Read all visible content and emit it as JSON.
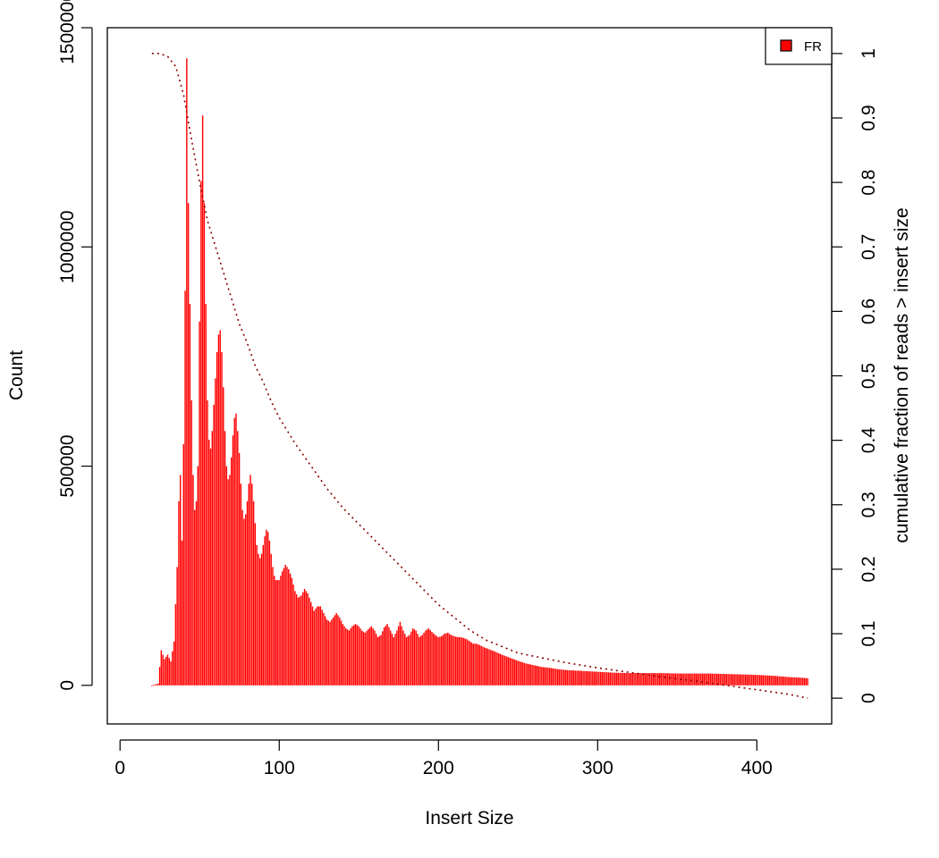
{
  "chart_data": {
    "type": "bar",
    "title": "",
    "xlabel": "Insert Size",
    "ylabel": "Count",
    "y2label": "cumulative fraction of reads > insert size",
    "xlim": [
      -8,
      447
    ],
    "ylim": [
      -88000,
      1500000
    ],
    "y2lim": [
      -0.04,
      1.04
    ],
    "xticks": [
      "0",
      "100",
      "200",
      "300",
      "400"
    ],
    "xtick_values": [
      0,
      100,
      200,
      300,
      400
    ],
    "yticks": [
      "0",
      "500000",
      "1000000",
      "1500000"
    ],
    "ytick_values": [
      0,
      500000,
      1000000,
      1500000
    ],
    "y2ticks": [
      "0",
      "0.1",
      "0.2",
      "0.3",
      "0.4",
      "0.5",
      "0.6",
      "0.7",
      "0.8",
      "0.9",
      "1"
    ],
    "y2tick_values": [
      0,
      0.1,
      0.2,
      0.3,
      0.4,
      0.5,
      0.6,
      0.7,
      0.8,
      0.9,
      1
    ],
    "grid": false,
    "legend": {
      "position": "top-right",
      "entries": [
        {
          "label": "FR",
          "color": "#ff0000"
        }
      ]
    },
    "series": [
      {
        "name": "FR",
        "kind": "histogram",
        "color": "#ff0000",
        "points": [
          [
            20,
            0
          ],
          [
            24,
            4000
          ],
          [
            26,
            80000
          ],
          [
            28,
            60000
          ],
          [
            30,
            70000
          ],
          [
            32,
            55000
          ],
          [
            34,
            100000
          ],
          [
            36,
            270000
          ],
          [
            37,
            420000
          ],
          [
            38,
            480000
          ],
          [
            39,
            330000
          ],
          [
            40,
            550000
          ],
          [
            41,
            900000
          ],
          [
            42,
            1430000
          ],
          [
            43,
            1100000
          ],
          [
            44,
            870000
          ],
          [
            45,
            650000
          ],
          [
            46,
            480000
          ],
          [
            47,
            400000
          ],
          [
            48,
            420000
          ],
          [
            49,
            500000
          ],
          [
            50,
            830000
          ],
          [
            51,
            1150000
          ],
          [
            52,
            1300000
          ],
          [
            53,
            1100000
          ],
          [
            54,
            870000
          ],
          [
            55,
            650000
          ],
          [
            56,
            560000
          ],
          [
            57,
            540000
          ],
          [
            58,
            580000
          ],
          [
            59,
            640000
          ],
          [
            60,
            700000
          ],
          [
            61,
            760000
          ],
          [
            62,
            800000
          ],
          [
            63,
            810000
          ],
          [
            64,
            760000
          ],
          [
            65,
            680000
          ],
          [
            66,
            580000
          ],
          [
            67,
            500000
          ],
          [
            68,
            470000
          ],
          [
            69,
            480000
          ],
          [
            70,
            520000
          ],
          [
            71,
            570000
          ],
          [
            72,
            610000
          ],
          [
            73,
            620000
          ],
          [
            74,
            580000
          ],
          [
            75,
            530000
          ],
          [
            76,
            460000
          ],
          [
            77,
            400000
          ],
          [
            78,
            380000
          ],
          [
            79,
            390000
          ],
          [
            80,
            420000
          ],
          [
            81,
            460000
          ],
          [
            82,
            480000
          ],
          [
            83,
            460000
          ],
          [
            84,
            420000
          ],
          [
            85,
            370000
          ],
          [
            86,
            320000
          ],
          [
            87,
            300000
          ],
          [
            88,
            290000
          ],
          [
            89,
            300000
          ],
          [
            90,
            320000
          ],
          [
            91,
            340000
          ],
          [
            92,
            355000
          ],
          [
            93,
            350000
          ],
          [
            94,
            330000
          ],
          [
            95,
            300000
          ],
          [
            96,
            270000
          ],
          [
            97,
            250000
          ],
          [
            98,
            240000
          ],
          [
            100,
            240000
          ],
          [
            102,
            260000
          ],
          [
            104,
            275000
          ],
          [
            106,
            265000
          ],
          [
            108,
            245000
          ],
          [
            110,
            215000
          ],
          [
            112,
            200000
          ],
          [
            114,
            205000
          ],
          [
            116,
            220000
          ],
          [
            118,
            210000
          ],
          [
            120,
            190000
          ],
          [
            122,
            170000
          ],
          [
            124,
            180000
          ],
          [
            126,
            180000
          ],
          [
            128,
            165000
          ],
          [
            130,
            150000
          ],
          [
            132,
            145000
          ],
          [
            134,
            155000
          ],
          [
            136,
            165000
          ],
          [
            138,
            155000
          ],
          [
            140,
            140000
          ],
          [
            142,
            130000
          ],
          [
            144,
            125000
          ],
          [
            146,
            135000
          ],
          [
            148,
            140000
          ],
          [
            150,
            135000
          ],
          [
            152,
            125000
          ],
          [
            154,
            120000
          ],
          [
            156,
            128000
          ],
          [
            158,
            135000
          ],
          [
            160,
            125000
          ],
          [
            162,
            110000
          ],
          [
            164,
            115000
          ],
          [
            166,
            132000
          ],
          [
            168,
            140000
          ],
          [
            170,
            125000
          ],
          [
            172,
            110000
          ],
          [
            174,
            125000
          ],
          [
            176,
            145000
          ],
          [
            178,
            125000
          ],
          [
            180,
            110000
          ],
          [
            182,
            115000
          ],
          [
            184,
            130000
          ],
          [
            186,
            125000
          ],
          [
            188,
            110000
          ],
          [
            190,
            115000
          ],
          [
            192,
            125000
          ],
          [
            194,
            130000
          ],
          [
            196,
            122000
          ],
          [
            198,
            115000
          ],
          [
            200,
            110000
          ],
          [
            202,
            112000
          ],
          [
            204,
            118000
          ],
          [
            206,
            120000
          ],
          [
            208,
            115000
          ],
          [
            210,
            112000
          ],
          [
            212,
            110000
          ],
          [
            214,
            110000
          ],
          [
            216,
            108000
          ],
          [
            218,
            105000
          ],
          [
            220,
            100000
          ],
          [
            222,
            95000
          ],
          [
            224,
            95000
          ],
          [
            226,
            92000
          ],
          [
            228,
            88000
          ],
          [
            230,
            85000
          ],
          [
            235,
            78000
          ],
          [
            240,
            70000
          ],
          [
            245,
            63000
          ],
          [
            250,
            56000
          ],
          [
            255,
            50000
          ],
          [
            260,
            46000
          ],
          [
            265,
            42000
          ],
          [
            270,
            40000
          ],
          [
            275,
            37000
          ],
          [
            280,
            35000
          ],
          [
            290,
            33000
          ],
          [
            300,
            31000
          ],
          [
            310,
            29000
          ],
          [
            320,
            28000
          ],
          [
            330,
            28000
          ],
          [
            340,
            28000
          ],
          [
            350,
            27000
          ],
          [
            360,
            27000
          ],
          [
            370,
            27000
          ],
          [
            380,
            26000
          ],
          [
            390,
            25000
          ],
          [
            400,
            24000
          ],
          [
            410,
            22000
          ],
          [
            420,
            19000
          ],
          [
            430,
            17000
          ],
          [
            432,
            16000
          ]
        ]
      },
      {
        "name": "",
        "kind": "cumulative-line",
        "axis": "right",
        "color": "#8b0000",
        "line_style": "dotted",
        "points": [
          [
            20,
            1.0
          ],
          [
            25,
            1.0
          ],
          [
            30,
            0.995
          ],
          [
            35,
            0.98
          ],
          [
            40,
            0.935
          ],
          [
            45,
            0.865
          ],
          [
            50,
            0.8
          ],
          [
            55,
            0.74
          ],
          [
            60,
            0.7
          ],
          [
            65,
            0.66
          ],
          [
            70,
            0.62
          ],
          [
            75,
            0.58
          ],
          [
            80,
            0.55
          ],
          [
            85,
            0.515
          ],
          [
            90,
            0.49
          ],
          [
            95,
            0.46
          ],
          [
            100,
            0.435
          ],
          [
            110,
            0.395
          ],
          [
            120,
            0.36
          ],
          [
            130,
            0.325
          ],
          [
            140,
            0.295
          ],
          [
            150,
            0.27
          ],
          [
            160,
            0.245
          ],
          [
            170,
            0.22
          ],
          [
            180,
            0.195
          ],
          [
            190,
            0.17
          ],
          [
            200,
            0.145
          ],
          [
            210,
            0.125
          ],
          [
            220,
            0.105
          ],
          [
            230,
            0.09
          ],
          [
            240,
            0.08
          ],
          [
            250,
            0.07
          ],
          [
            260,
            0.065
          ],
          [
            280,
            0.055
          ],
          [
            300,
            0.047
          ],
          [
            320,
            0.04
          ],
          [
            340,
            0.033
          ],
          [
            360,
            0.027
          ],
          [
            380,
            0.02
          ],
          [
            400,
            0.013
          ],
          [
            420,
            0.006
          ],
          [
            432,
            0.0
          ]
        ]
      }
    ]
  }
}
